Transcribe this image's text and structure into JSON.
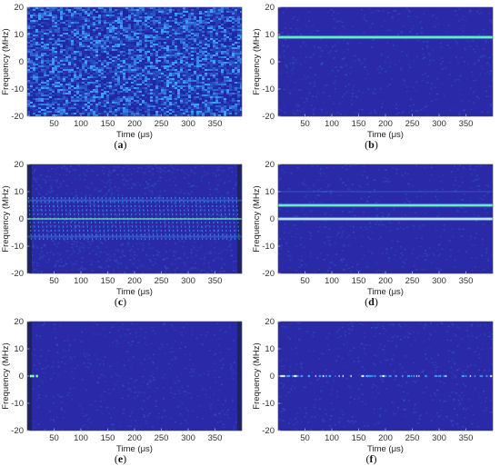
{
  "chart_data": [
    {
      "type": "heatmap",
      "caption": "(a)",
      "signal": "noise",
      "xlabel": "Time (μs)",
      "ylabel": "Frequency (MHz)",
      "xlim": [
        0,
        400
      ],
      "ylim": [
        -20,
        20
      ],
      "xticks": [
        50,
        100,
        150,
        200,
        250,
        300,
        350
      ],
      "yticks": [
        20,
        10,
        0,
        -10,
        -20
      ],
      "tones_mhz": []
    },
    {
      "type": "heatmap",
      "caption": "(b)",
      "signal": "single-tone",
      "xlabel": "Time (μs)",
      "ylabel": "Frequency (MHz)",
      "xlim": [
        0,
        400
      ],
      "ylim": [
        -20,
        20
      ],
      "xticks": [
        50,
        100,
        150,
        200,
        250,
        300,
        350
      ],
      "yticks": [
        20,
        10,
        0,
        -10,
        -20
      ],
      "tones_mhz": [
        9
      ]
    },
    {
      "type": "heatmap",
      "caption": "(c)",
      "signal": "sweep",
      "xlabel": "Time (μs)",
      "ylabel": "Frequency (MHz)",
      "xlim": [
        0,
        400
      ],
      "ylim": [
        -20,
        20
      ],
      "xticks": [
        50,
        100,
        150,
        200,
        250,
        300,
        350
      ],
      "yticks": [
        20,
        10,
        0,
        -10,
        -20
      ],
      "sweep_band_mhz": [
        -8,
        8
      ]
    },
    {
      "type": "heatmap",
      "caption": "(d)",
      "signal": "multi-tone",
      "xlabel": "Time (μs)",
      "ylabel": "Frequency (MHz)",
      "xlim": [
        0,
        400
      ],
      "ylim": [
        -20,
        20
      ],
      "xticks": [
        50,
        100,
        150,
        200,
        250,
        300,
        350
      ],
      "yticks": [
        20,
        10,
        0,
        -10,
        -20
      ],
      "tones_mhz": [
        5,
        0
      ]
    },
    {
      "type": "heatmap",
      "caption": "(e)",
      "signal": "pulse",
      "xlabel": "Time (μs)",
      "ylabel": "Frequency (MHz)",
      "xlim": [
        0,
        400
      ],
      "ylim": [
        -20,
        20
      ],
      "xticks": [
        50,
        100,
        150,
        200,
        250,
        300,
        350
      ],
      "yticks": [
        20,
        10,
        0,
        -10,
        -20
      ],
      "tones_mhz": [
        0
      ]
    },
    {
      "type": "heatmap",
      "caption": "(f)",
      "signal": "intermittent",
      "xlabel": "Time (μs)",
      "ylabel": "Frequency (MHz)",
      "xlim": [
        0,
        400
      ],
      "ylim": [
        -20,
        20
      ],
      "xticks": [
        50,
        100,
        150,
        200,
        250,
        300,
        350
      ],
      "yticks": [
        20,
        10,
        0,
        -10,
        -20
      ],
      "tones_mhz": [
        0
      ]
    }
  ],
  "colors": {
    "background": "#2a2aa8",
    "noise_low": "#1f25a6",
    "noise_high": "#3fa9ff",
    "tone": "#7dffb6",
    "tone_white": "#e8f4ff",
    "edge_dark": "#1a1f55"
  }
}
